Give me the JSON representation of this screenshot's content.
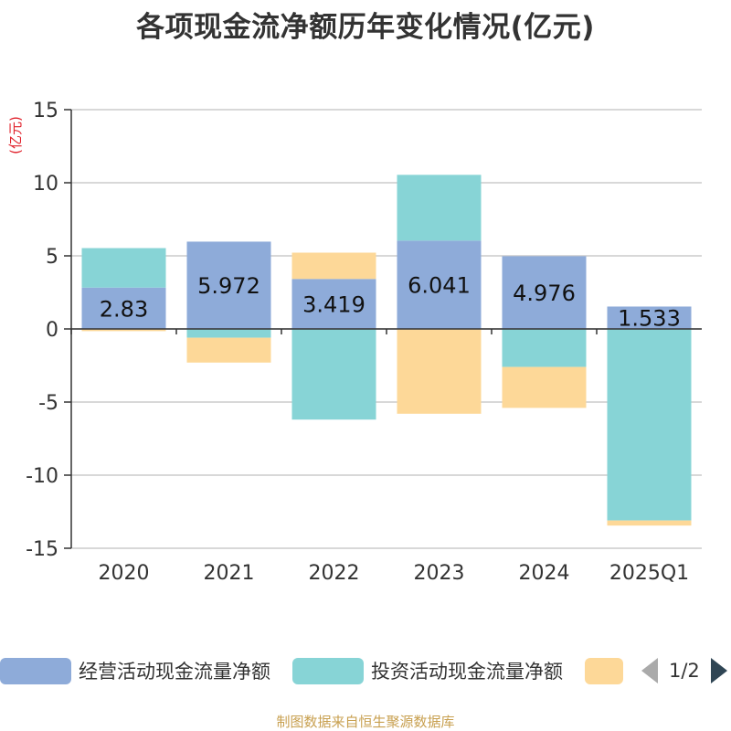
{
  "title": "各项现金流净额历年变化情况(亿元)",
  "unit_label": "(亿元)",
  "source_note": "制图数据来自恒生聚源数据库",
  "colors": {
    "operating": "#8eabd9",
    "investing": "#87d4d6",
    "financing": "#fdd898",
    "title": "#333333",
    "axis_label": "#333333",
    "unit": "#e0202a",
    "grid": "#cccccc",
    "source": "#c8a050"
  },
  "legend": {
    "items": [
      {
        "label": "经营活动现金流量净额",
        "color": "#8eabd9"
      },
      {
        "label": "投资活动现金流量净额",
        "color": "#87d4d6"
      },
      {
        "label": "",
        "color": "#fdd898"
      }
    ],
    "page_indicator": "1/2"
  },
  "chart_data": {
    "type": "bar",
    "stacked": true,
    "categories": [
      "2020",
      "2021",
      "2022",
      "2023",
      "2024",
      "2025Q1"
    ],
    "ylim": [
      -15,
      15
    ],
    "yticks": [
      15,
      10,
      5,
      0,
      -5,
      -10,
      -15
    ],
    "ytick_labels": [
      "15",
      "10",
      "5",
      "0",
      "-5",
      "-10",
      "-15"
    ],
    "ylabel": "(亿元)",
    "grid": true,
    "legend_position": "bottom",
    "series": [
      {
        "name": "经营活动现金流量净额",
        "color": "#8eabd9",
        "values": [
          2.83,
          5.972,
          3.419,
          6.041,
          4.976,
          1.533
        ],
        "data_labels": [
          "2.83",
          "5.972",
          "3.419",
          "6.041",
          "4.976",
          "1.533"
        ]
      },
      {
        "name": "投资活动现金流量净额",
        "color": "#87d4d6",
        "values": [
          2.7,
          -0.6,
          -6.2,
          4.5,
          -2.6,
          -13.1
        ]
      },
      {
        "color": "#fdd898",
        "values": [
          -0.15,
          -1.7,
          1.8,
          -5.8,
          -2.8,
          -0.35
        ]
      }
    ]
  }
}
